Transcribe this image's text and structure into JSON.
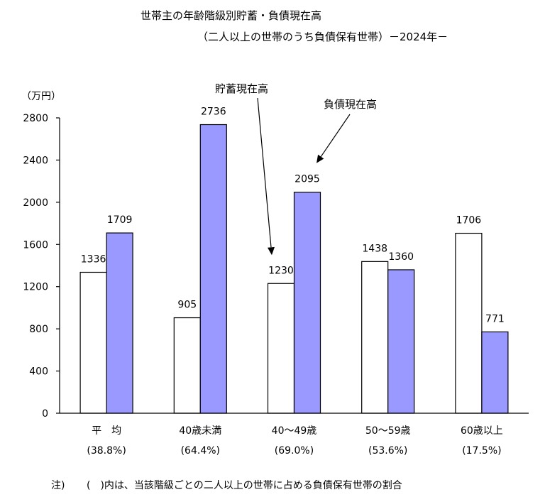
{
  "chart_data": {
    "type": "bar",
    "title": "世帯主の年齢階級別貯蓄・負債現在高",
    "subtitle": "（二人以上の世帯のうち負債保有世帯）－2024年－",
    "ylabel": "（万円）",
    "ylim": [
      0,
      2800
    ],
    "yticks": [
      0,
      400,
      800,
      1200,
      1600,
      2000,
      2400,
      2800
    ],
    "grid": false,
    "categories": [
      "平　均",
      "40歳未満",
      "40～49歳",
      "50～59歳",
      "60歳以上"
    ],
    "category_notes": [
      "(38.8%)",
      "(64.4%)",
      "(69.0%)",
      "(53.6%)",
      "(17.5%)"
    ],
    "series": [
      {
        "name": "貯蓄現在高",
        "values": [
          1336,
          905,
          1230,
          1438,
          1706
        ],
        "color": "#ffffff"
      },
      {
        "name": "負債現在高",
        "values": [
          1709,
          2736,
          2095,
          1360,
          771
        ],
        "color": "#9999ff"
      }
    ],
    "annotations": [
      {
        "text": "貯蓄現在高",
        "series": 0,
        "category": 2
      },
      {
        "text": "負債現在高",
        "series": 1,
        "category": 2
      }
    ],
    "footnote": {
      "prefix": "注)",
      "text": "(　)内は、当該階級ごとの二人以上の世帯に占める負債保有世帯の割合"
    }
  }
}
